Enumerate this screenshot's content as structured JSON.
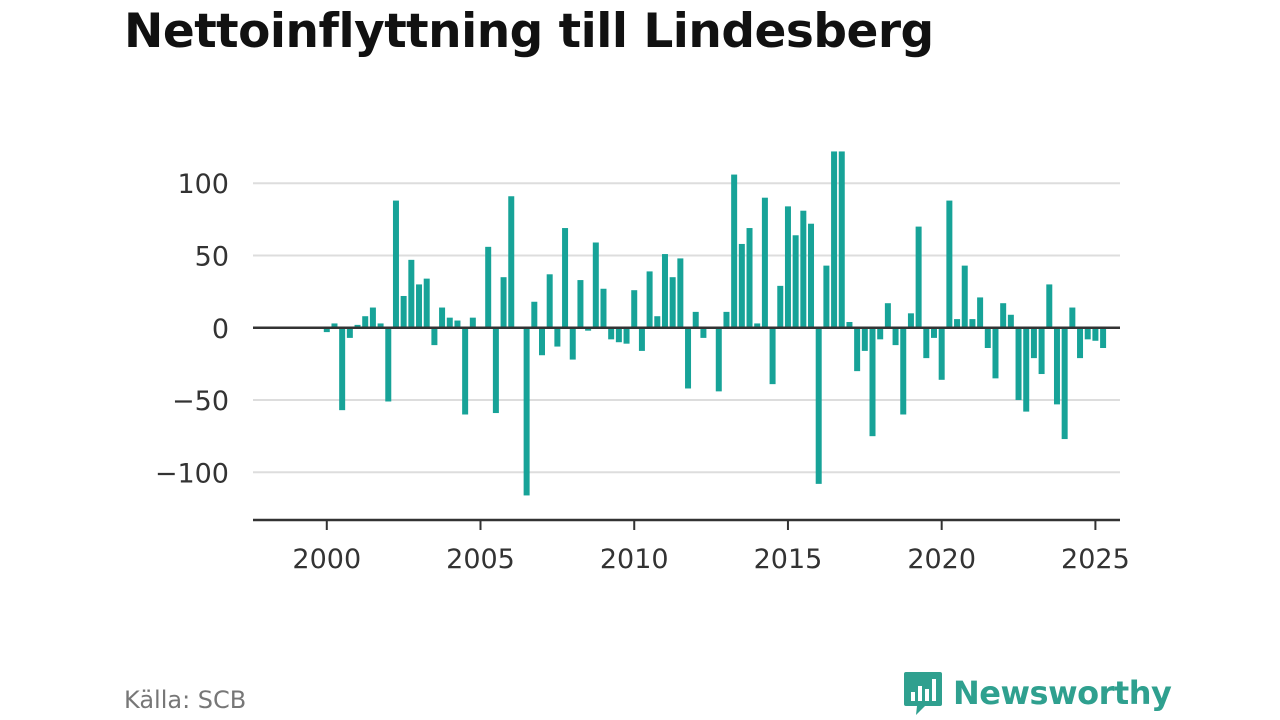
{
  "title": "Nettoinflyttning till Lindesberg",
  "source": "Källa: SCB",
  "brand": {
    "name": "Newsworthy",
    "color": "#2fa08f",
    "icon": "bar-chart-speech-bubble-icon"
  },
  "chart_data": {
    "type": "bar",
    "title": "Nettoinflyttning till Lindesberg",
    "xlabel": "",
    "ylabel": "",
    "bar_color": "#17a398",
    "grid": true,
    "legend": "none",
    "xlim": [
      1997.6,
      2025.8
    ],
    "ylim": [
      -133,
      123
    ],
    "y_ticks": [
      100,
      50,
      0,
      -50,
      -100
    ],
    "y_tick_labels": [
      "100",
      "50",
      "0",
      "−50",
      "−100"
    ],
    "x_ticks": [
      2000,
      2005,
      2010,
      2015,
      2020,
      2025
    ],
    "x_tick_labels": [
      "2000",
      "2005",
      "2010",
      "2015",
      "2020",
      "2025"
    ],
    "series": [
      {
        "x": [
          "2000-Q1",
          "2000-Q2",
          "2000-Q3",
          "2000-Q4",
          "2001-Q1",
          "2001-Q2",
          "2001-Q3",
          "2001-Q4",
          "2002-Q1",
          "2002-Q2",
          "2002-Q3",
          "2002-Q4",
          "2003-Q1",
          "2003-Q2",
          "2003-Q3",
          "2003-Q4",
          "2004-Q1",
          "2004-Q2",
          "2004-Q3",
          "2004-Q4",
          "2005-Q1",
          "2005-Q2",
          "2005-Q3",
          "2005-Q4",
          "2006-Q1",
          "2006-Q2",
          "2006-Q3",
          "2006-Q4",
          "2007-Q1",
          "2007-Q2",
          "2007-Q3",
          "2007-Q4",
          "2008-Q1",
          "2008-Q2",
          "2008-Q3",
          "2008-Q4",
          "2009-Q1",
          "2009-Q2",
          "2009-Q3",
          "2009-Q4",
          "2010-Q1",
          "2010-Q2",
          "2010-Q3",
          "2010-Q4",
          "2011-Q1",
          "2011-Q2",
          "2011-Q3",
          "2011-Q4",
          "2012-Q1",
          "2012-Q2",
          "2012-Q3",
          "2012-Q4",
          "2013-Q1",
          "2013-Q2",
          "2013-Q3",
          "2013-Q4",
          "2014-Q1",
          "2014-Q2",
          "2014-Q3",
          "2014-Q4",
          "2015-Q1",
          "2015-Q2",
          "2015-Q3",
          "2015-Q4",
          "2016-Q1",
          "2016-Q2",
          "2016-Q3",
          "2016-Q4",
          "2017-Q1",
          "2017-Q2",
          "2017-Q3",
          "2017-Q4",
          "2018-Q1",
          "2018-Q2",
          "2018-Q3",
          "2018-Q4",
          "2019-Q1",
          "2019-Q2",
          "2019-Q3",
          "2019-Q4",
          "2020-Q1",
          "2020-Q2",
          "2020-Q3",
          "2020-Q4",
          "2021-Q1",
          "2021-Q2",
          "2021-Q3",
          "2021-Q4",
          "2022-Q1",
          "2022-Q2",
          "2022-Q3",
          "2022-Q4",
          "2023-Q1",
          "2023-Q2",
          "2023-Q3",
          "2023-Q4",
          "2024-Q1",
          "2024-Q2",
          "2024-Q3",
          "2024-Q4",
          "2025-Q1",
          "2025-Q2"
        ],
        "values": [
          -3,
          3,
          -57,
          -7,
          2,
          8,
          14,
          3,
          -51,
          88,
          22,
          47,
          30,
          34,
          -12,
          14,
          7,
          5,
          -60,
          7,
          0,
          56,
          -59,
          35,
          91,
          0,
          -116,
          18,
          -19,
          37,
          -13,
          69,
          -22,
          33,
          -2,
          59,
          27,
          -8,
          -10,
          -11,
          26,
          -16,
          39,
          8,
          51,
          35,
          48,
          -42,
          11,
          -7,
          0,
          -44,
          11,
          106,
          58,
          69,
          3,
          90,
          -39,
          29,
          84,
          64,
          81,
          72,
          -108,
          43,
          122,
          122,
          4,
          -30,
          -16,
          -75,
          -8,
          17,
          -12,
          -60,
          10,
          70,
          -21,
          -7,
          -36,
          88,
          6,
          43,
          6,
          21,
          -14,
          -35,
          17,
          9,
          -50,
          -58,
          -21,
          -32,
          30,
          -53,
          -77,
          14,
          -21,
          -8,
          -9,
          -14
        ]
      }
    ]
  }
}
